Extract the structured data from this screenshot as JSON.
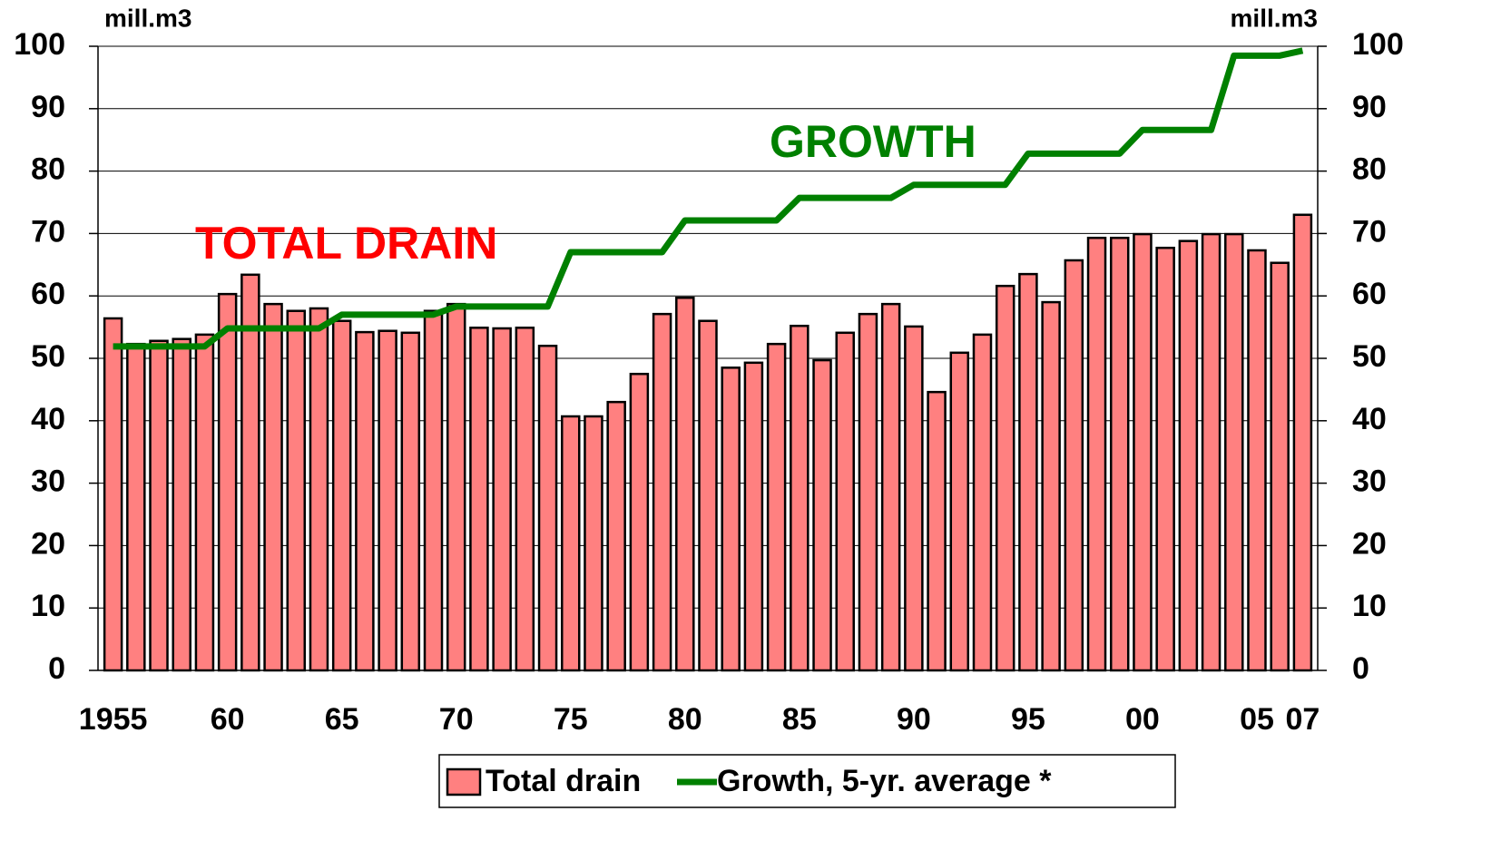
{
  "chart_data": {
    "type": "bar",
    "y_label": "mill.m3",
    "y2_label": "mill.m3",
    "categories": [
      "1955",
      null,
      null,
      null,
      null,
      "60",
      null,
      null,
      null,
      null,
      "65",
      null,
      null,
      null,
      null,
      "70",
      null,
      null,
      null,
      null,
      "75",
      null,
      null,
      null,
      null,
      "80",
      null,
      null,
      null,
      null,
      "85",
      null,
      null,
      null,
      null,
      "90",
      null,
      null,
      null,
      null,
      "95",
      null,
      null,
      null,
      null,
      "00",
      null,
      null,
      null,
      null,
      "05",
      null,
      "07"
    ],
    "series": [
      {
        "name": "Total drain",
        "type": "bar",
        "color": "#ff8080",
        "values": [
          56.4,
          52.3,
          52.8,
          53.1,
          53.8,
          60.3,
          63.4,
          58.7,
          57.6,
          58.0,
          56.0,
          54.2,
          54.4,
          54.1,
          57.6,
          58.7,
          54.9,
          54.8,
          54.9,
          52.0,
          40.7,
          40.7,
          43.0,
          47.5,
          57.1,
          59.7,
          56.0,
          48.5,
          49.3,
          52.3,
          55.2,
          49.7,
          54.1,
          57.1,
          58.7,
          55.1,
          44.6,
          50.9,
          53.8,
          61.6,
          63.5,
          59.0,
          65.7,
          69.3,
          69.3,
          69.9,
          67.7,
          68.8,
          69.9,
          69.9,
          67.3,
          65.3,
          73.0
        ]
      },
      {
        "name": "Growth, 5-yr. average *",
        "type": "line",
        "color": "#008000",
        "values": [
          51.9,
          51.9,
          51.9,
          51.9,
          51.9,
          54.8,
          54.8,
          54.8,
          54.8,
          54.8,
          57.0,
          57.0,
          57.0,
          57.0,
          57.0,
          58.3,
          58.3,
          58.3,
          58.3,
          58.3,
          67.0,
          67.0,
          67.0,
          67.0,
          67.0,
          72.1,
          72.1,
          72.1,
          72.1,
          72.1,
          75.7,
          75.7,
          75.7,
          75.7,
          75.7,
          77.8,
          77.8,
          77.8,
          77.8,
          77.8,
          82.8,
          82.8,
          82.8,
          82.8,
          82.8,
          86.6,
          86.6,
          86.6,
          86.6,
          98.5,
          98.5,
          98.5,
          99.3
        ]
      }
    ],
    "annotations": [
      {
        "text": "TOTAL DRAIN",
        "color": "#ff0000"
      },
      {
        "text": "GROWTH",
        "color": "#008000"
      }
    ],
    "ylim": [
      0,
      100
    ],
    "yticks": [
      0,
      10,
      20,
      30,
      40,
      50,
      60,
      70,
      80,
      90,
      100
    ],
    "y2lim": [
      0,
      100
    ],
    "y2ticks": [
      0,
      10,
      20,
      30,
      40,
      50,
      60,
      70,
      80,
      90,
      100
    ],
    "grid": true,
    "legend": "bottom"
  }
}
